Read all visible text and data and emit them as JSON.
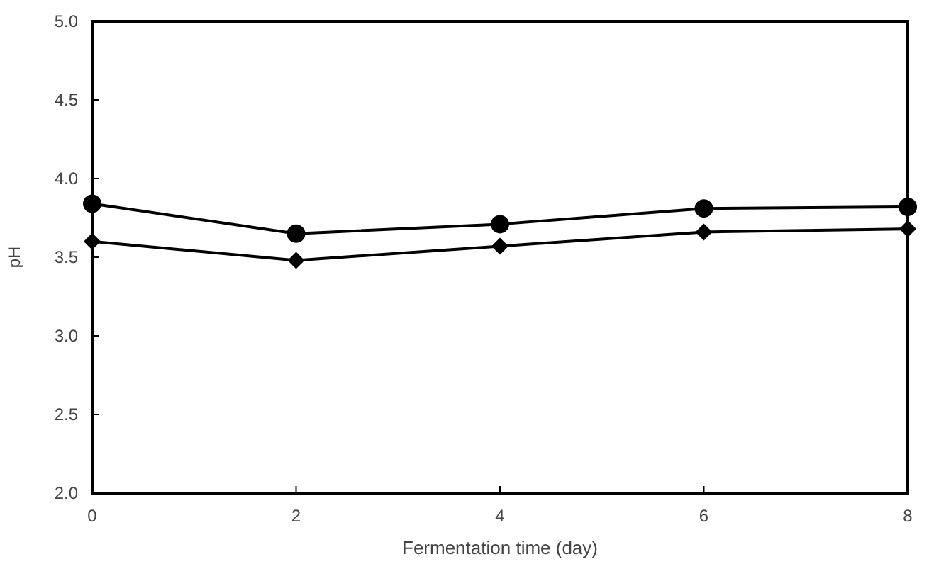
{
  "chart_data": {
    "type": "line",
    "xlabel": "Fermentation time (day)",
    "ylabel": "pH",
    "x": [
      0,
      2,
      4,
      6,
      8
    ],
    "series": [
      {
        "color": "#000000",
        "marker": "circle",
        "values": [
          3.84,
          3.65,
          3.71,
          3.81,
          3.82
        ]
      },
      {
        "color": "#000000",
        "marker": "diamond",
        "values": [
          3.6,
          3.48,
          3.57,
          3.66,
          3.68
        ]
      }
    ],
    "xlim": [
      0,
      8
    ],
    "xticks": [
      0,
      2,
      4,
      6,
      8
    ],
    "ylim": [
      2,
      5
    ],
    "yticks": [
      {
        "value": 2,
        "label": "2.0"
      },
      {
        "value": 2.5,
        "label": "2.5"
      },
      {
        "value": 3,
        "label": "3.0"
      },
      {
        "value": 3.5,
        "label": "3.5"
      },
      {
        "value": 4,
        "label": "4.0"
      },
      {
        "value": 4.5,
        "label": "4.5"
      },
      {
        "value": 5,
        "label": "5.0"
      }
    ],
    "grid": false
  }
}
